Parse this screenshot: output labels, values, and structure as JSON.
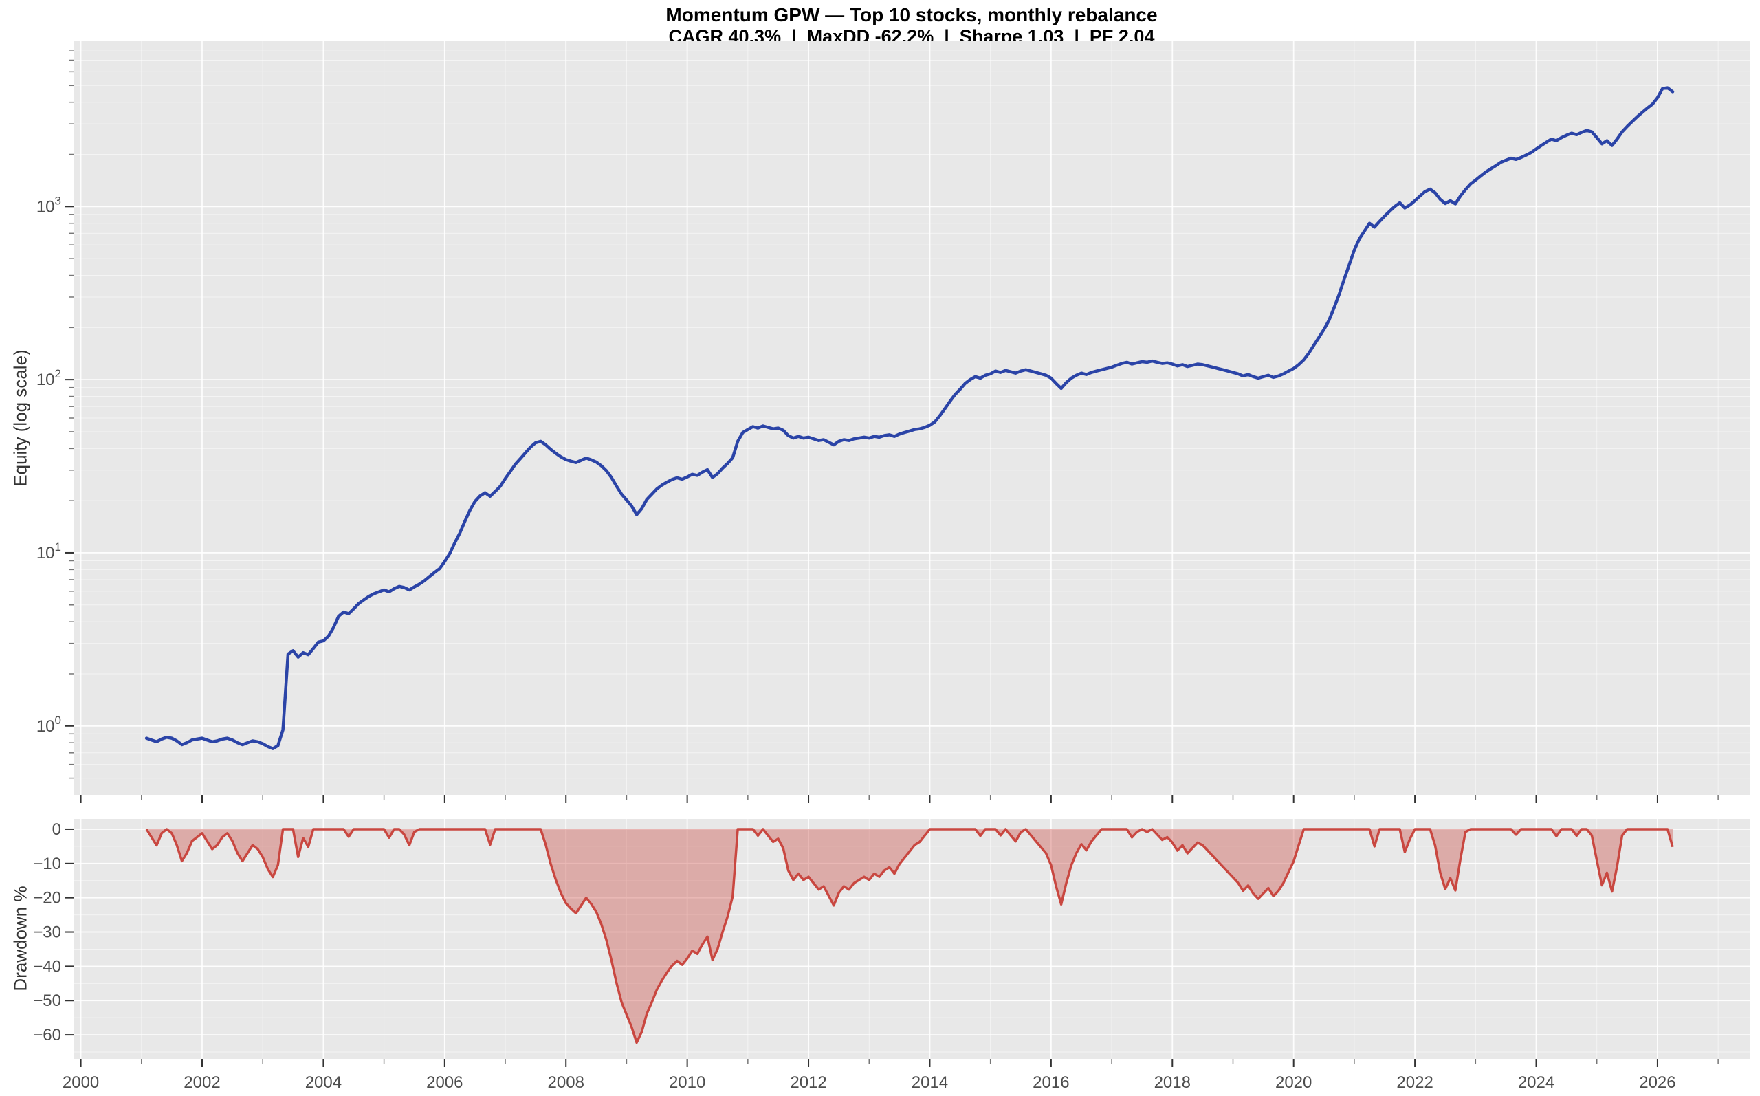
{
  "chart_data": {
    "type": "line",
    "title": "Momentum GPW — Top 10 stocks, monthly rebalance",
    "subtitle": "CAGR 40.3%  |  MaxDD -62.2%  |  Sharpe 1.03  |  PF 2.04",
    "frequency": "monthly",
    "x": {
      "unit": "year",
      "range": [
        1999.88,
        2027.52
      ],
      "ticks_major": [
        2000,
        2002,
        2004,
        2006,
        2008,
        2010,
        2012,
        2014,
        2016,
        2018,
        2020,
        2022,
        2024,
        2026
      ],
      "tick_labels": [
        "2000",
        "2002",
        "2004",
        "2006",
        "2008",
        "2010",
        "2012",
        "2014",
        "2016",
        "2018",
        "2020",
        "2022",
        "2024",
        "2026"
      ],
      "ticks_minor": [
        2001,
        2003,
        2005,
        2007,
        2009,
        2011,
        2013,
        2015,
        2017,
        2019,
        2021,
        2023,
        2025,
        2027
      ]
    },
    "equity": {
      "ylabel": "Equity (log scale)",
      "yscale": "log",
      "yrange": [
        0.4,
        9000
      ],
      "ytick_decades": [
        1,
        10,
        100,
        1000
      ],
      "ytick_exponents": [
        "0",
        "1",
        "2",
        "3"
      ],
      "line_color": "#2b44a7",
      "series_start": {
        "year": 2001,
        "month": 2
      },
      "monthly_values": [
        0.85,
        0.83,
        0.81,
        0.84,
        0.86,
        0.85,
        0.82,
        0.78,
        0.8,
        0.83,
        0.84,
        0.85,
        0.83,
        0.81,
        0.82,
        0.84,
        0.85,
        0.83,
        0.8,
        0.78,
        0.8,
        0.82,
        0.81,
        0.79,
        0.76,
        0.74,
        0.77,
        0.95,
        2.6,
        2.72,
        2.5,
        2.65,
        2.58,
        2.8,
        3.05,
        3.1,
        3.3,
        3.7,
        4.3,
        4.55,
        4.45,
        4.75,
        5.1,
        5.35,
        5.6,
        5.8,
        5.95,
        6.1,
        5.95,
        6.2,
        6.4,
        6.3,
        6.1,
        6.35,
        6.6,
        6.9,
        7.3,
        7.7,
        8.1,
        8.9,
        9.9,
        11.4,
        13.0,
        15.2,
        17.6,
        19.8,
        21.3,
        22.2,
        21.2,
        22.6,
        24.2,
        26.8,
        29.5,
        32.5,
        35.0,
        37.8,
        40.8,
        43.2,
        44.0,
        42.0,
        39.5,
        37.5,
        35.8,
        34.5,
        33.8,
        33.2,
        34.2,
        35.2,
        34.4,
        33.4,
        31.8,
        29.8,
        27.2,
        24.3,
        21.8,
        20.2,
        18.6,
        16.6,
        18.0,
        20.3,
        21.8,
        23.4,
        24.6,
        25.6,
        26.5,
        27.1,
        26.6,
        27.4,
        28.4,
        28.0,
        29.2,
        30.2,
        27.2,
        28.6,
        30.8,
        32.8,
        35.4,
        44.0,
        49.5,
        51.5,
        53.5,
        52.5,
        54.0,
        53.0,
        52.0,
        52.5,
        51.0,
        47.5,
        46.0,
        47.0,
        46.0,
        46.5,
        45.5,
        44.5,
        45.0,
        43.5,
        42.0,
        44.0,
        45.0,
        44.5,
        45.5,
        46.0,
        46.5,
        46.0,
        47.0,
        46.5,
        47.5,
        48.0,
        47.0,
        48.5,
        49.5,
        50.5,
        51.5,
        52.0,
        53.0,
        54.5,
        57.0,
        62.0,
        68.0,
        75.0,
        82.0,
        88.0,
        95.0,
        100,
        104,
        102,
        106,
        108,
        112,
        110,
        113,
        111,
        109,
        112,
        114,
        112,
        110,
        108,
        106,
        102,
        95,
        89,
        96,
        102,
        106,
        109,
        107,
        110,
        112,
        114,
        116,
        118,
        121,
        124,
        126,
        123,
        125,
        127,
        126,
        128,
        126,
        124,
        125,
        123,
        120,
        122,
        119,
        121,
        123,
        122,
        120,
        118,
        116,
        114,
        112,
        110,
        108,
        105,
        107,
        104,
        102,
        104,
        106,
        103,
        105,
        108,
        112,
        116,
        122,
        130,
        142,
        158,
        175,
        195,
        220,
        260,
        310,
        380,
        460,
        560,
        650,
        720,
        800,
        760,
        820,
        880,
        940,
        1000,
        1050,
        980,
        1020,
        1080,
        1150,
        1220,
        1260,
        1200,
        1100,
        1040,
        1080,
        1035,
        1150,
        1250,
        1350,
        1420,
        1500,
        1580,
        1650,
        1720,
        1800,
        1850,
        1900,
        1870,
        1920,
        1980,
        2050,
        2150,
        2250,
        2350,
        2450,
        2400,
        2500,
        2580,
        2650,
        2600,
        2680,
        2750,
        2700,
        2500,
        2300,
        2400,
        2250,
        2450,
        2700,
        2900,
        3100,
        3300,
        3500,
        3700,
        3900,
        4250,
        4800,
        4850,
        4600
      ]
    },
    "drawdown": {
      "ylabel": "Drawdown %",
      "yrange": [
        3,
        -67
      ],
      "yticks": [
        0,
        -10,
        -20,
        -30,
        -40,
        -50,
        -60
      ],
      "ytick_labels": [
        "0",
        "−10",
        "−20",
        "−30",
        "−40",
        "−50",
        "−60"
      ],
      "yticks_minor": [
        -5,
        -15,
        -25,
        -35,
        -45,
        -55,
        -65
      ],
      "line_color": "#c94740",
      "fill_color": "rgba(201,71,64,0.38)",
      "derivation": "drawdown_pct = 100 * (equity / cummax(equity) - 1)",
      "max_drawdown_pct": -62.2
    },
    "style": {
      "panel_background": "#e8e8e8",
      "grid_major": "rgba(255,255,255,0.9)",
      "grid_minor": "rgba(255,255,255,0.5)",
      "tick_color": "#333333",
      "tick_label_color": "#4d4d4d"
    }
  }
}
